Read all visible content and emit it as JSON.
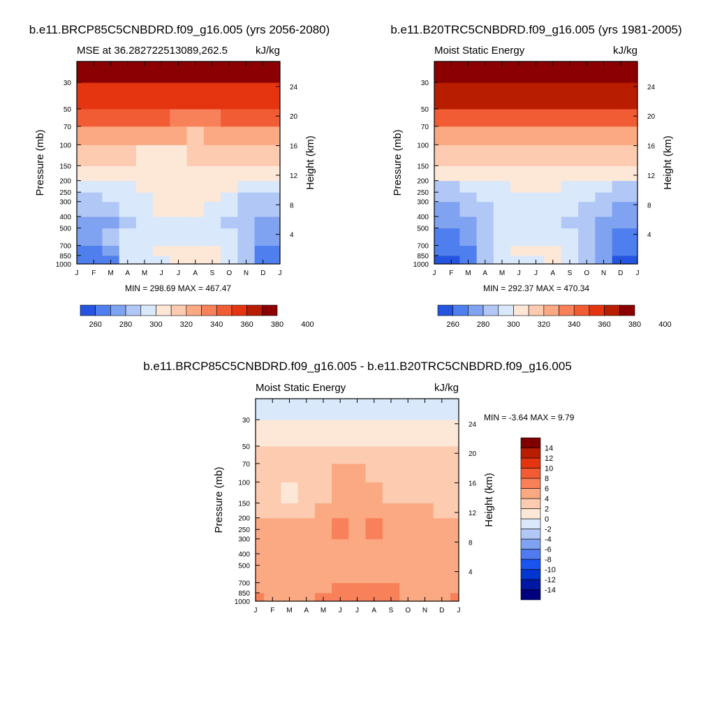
{
  "palettes": {
    "warm_cool": [
      "#00007f",
      "#0017a6",
      "#0035d0",
      "#1a54ef",
      "#4f7bee",
      "#7fa2f1",
      "#b1c7f6",
      "#d9e8fb",
      "#fde7d7",
      "#fccbb0",
      "#fba982",
      "#f8815a",
      "#f25c34",
      "#e43410",
      "#b81d00",
      "#7f0000"
    ],
    "mse_fields": [
      "#2555e0",
      "#4f7fee",
      "#7fa2f1",
      "#b1c7f6",
      "#d9e8fb",
      "#fde7d7",
      "#fccbb0",
      "#fba982",
      "#f8815a",
      "#f25c34",
      "#e43410",
      "#b81d00",
      "#8b0000"
    ]
  },
  "chart_data": [
    {
      "type": "heatmap",
      "name": "future",
      "title": "b.e11.BRCP85C5CNBDRD.f09_g16.005 (yrs 2056-2080)",
      "subtitle_left": "MSE at 36.282722513089,262.5",
      "subtitle_right": "kJ/kg",
      "xlabel": "",
      "ylabel": "Pressure (mb)",
      "ylabel_right": "Height (km)",
      "x_ticks": [
        "J",
        "F",
        "M",
        "A",
        "M",
        "J",
        "J",
        "A",
        "S",
        "O",
        "N",
        "D",
        "J"
      ],
      "y_ticks": [
        30,
        50,
        70,
        100,
        150,
        200,
        250,
        300,
        400,
        500,
        700,
        850,
        1000
      ],
      "ylim": [
        1000,
        20
      ],
      "height_ticks": [
        4,
        8,
        12,
        16,
        20,
        24
      ],
      "stats": "MIN = 298.69 MAX = 467.47",
      "colorbar": {
        "orientation": "horizontal",
        "labels": [
          "260",
          "280",
          "300",
          "320",
          "340",
          "360",
          "380",
          "400"
        ]
      },
      "levels": [
        1000,
        850,
        700,
        500,
        400,
        300,
        250,
        200,
        150,
        100,
        70,
        50,
        30,
        20
      ],
      "classes": [
        [
          1,
          1,
          1,
          4,
          4,
          4,
          5,
          5,
          5,
          4,
          3,
          1,
          1
        ],
        [
          1,
          1,
          2,
          4,
          4,
          5,
          5,
          5,
          5,
          4,
          3,
          1,
          1
        ],
        [
          2,
          2,
          3,
          4,
          4,
          4,
          4,
          4,
          4,
          4,
          3,
          2,
          2
        ],
        [
          2,
          2,
          2,
          3,
          4,
          4,
          4,
          4,
          4,
          3,
          3,
          2,
          2
        ],
        [
          3,
          3,
          3,
          4,
          4,
          5,
          5,
          5,
          4,
          4,
          3,
          3,
          3
        ],
        [
          3,
          3,
          4,
          4,
          4,
          5,
          5,
          5,
          5,
          4,
          3,
          3,
          3
        ],
        [
          4,
          4,
          4,
          4,
          5,
          5,
          5,
          5,
          5,
          5,
          4,
          4,
          4
        ],
        [
          5,
          5,
          5,
          5,
          5,
          5,
          5,
          5,
          5,
          5,
          5,
          5,
          5
        ],
        [
          6,
          6,
          6,
          6,
          5,
          5,
          5,
          6,
          6,
          6,
          6,
          6,
          6
        ],
        [
          7,
          7,
          7,
          7,
          7,
          7,
          7,
          6,
          7,
          7,
          7,
          7,
          7
        ],
        [
          9,
          9,
          9,
          9,
          9,
          9,
          8,
          8,
          8,
          9,
          9,
          9,
          9
        ],
        [
          10,
          10,
          10,
          10,
          10,
          10,
          10,
          10,
          10,
          10,
          10,
          10,
          10
        ],
        [
          12,
          12,
          12,
          12,
          12,
          12,
          12,
          12,
          12,
          12,
          12,
          12,
          12
        ],
        [
          12,
          12,
          12,
          12,
          12,
          12,
          12,
          12,
          12,
          12,
          12,
          12,
          12
        ]
      ]
    },
    {
      "type": "heatmap",
      "name": "historical",
      "title": "b.e11.B20TRC5CNBDRD.f09_g16.005 (yrs 1981-2005)",
      "subtitle_left": "Moist Static Energy",
      "subtitle_right": "kJ/kg",
      "xlabel": "",
      "ylabel": "Pressure (mb)",
      "ylabel_right": "Height (km)",
      "x_ticks": [
        "J",
        "F",
        "M",
        "A",
        "M",
        "J",
        "J",
        "A",
        "S",
        "O",
        "N",
        "D",
        "J"
      ],
      "y_ticks": [
        30,
        50,
        70,
        100,
        150,
        200,
        250,
        300,
        400,
        500,
        700,
        850,
        1000
      ],
      "ylim": [
        1000,
        20
      ],
      "height_ticks": [
        4,
        8,
        12,
        16,
        20,
        24
      ],
      "stats": "MIN = 292.37 MAX = 470.34",
      "colorbar": {
        "orientation": "horizontal",
        "labels": [
          "260",
          "280",
          "300",
          "320",
          "340",
          "360",
          "380",
          "400"
        ]
      },
      "levels": [
        1000,
        850,
        700,
        500,
        400,
        300,
        250,
        200,
        150,
        100,
        70,
        50,
        30,
        20
      ],
      "classes": [
        [
          0,
          0,
          1,
          3,
          4,
          4,
          4,
          5,
          4,
          3,
          2,
          0,
          0
        ],
        [
          1,
          1,
          1,
          3,
          4,
          5,
          5,
          5,
          4,
          3,
          2,
          1,
          1
        ],
        [
          1,
          1,
          2,
          3,
          4,
          4,
          4,
          4,
          4,
          3,
          2,
          1,
          1
        ],
        [
          2,
          2,
          2,
          3,
          4,
          4,
          4,
          4,
          3,
          3,
          2,
          2,
          2
        ],
        [
          2,
          2,
          3,
          3,
          4,
          4,
          4,
          4,
          4,
          3,
          3,
          2,
          2
        ],
        [
          3,
          3,
          3,
          4,
          4,
          4,
          4,
          4,
          4,
          4,
          3,
          3,
          3
        ],
        [
          3,
          3,
          4,
          4,
          4,
          5,
          5,
          5,
          4,
          4,
          4,
          3,
          3
        ],
        [
          5,
          5,
          5,
          5,
          5,
          5,
          5,
          5,
          5,
          5,
          5,
          5,
          5
        ],
        [
          6,
          6,
          6,
          6,
          6,
          6,
          6,
          6,
          6,
          6,
          6,
          6,
          6
        ],
        [
          7,
          7,
          7,
          7,
          7,
          7,
          7,
          7,
          7,
          7,
          7,
          7,
          7
        ],
        [
          9,
          9,
          9,
          9,
          9,
          9,
          9,
          9,
          9,
          9,
          9,
          9,
          9
        ],
        [
          11,
          11,
          11,
          11,
          11,
          11,
          11,
          11,
          11,
          11,
          11,
          11,
          11
        ],
        [
          12,
          12,
          12,
          12,
          12,
          12,
          12,
          12,
          12,
          12,
          12,
          12,
          12
        ],
        [
          12,
          12,
          12,
          12,
          12,
          12,
          12,
          12,
          12,
          12,
          12,
          12,
          12
        ]
      ]
    },
    {
      "type": "heatmap",
      "name": "difference",
      "title": "b.e11.BRCP85C5CNBDRD.f09_g16.005 - b.e11.B20TRC5CNBDRD.f09_g16.005",
      "subtitle_left": "Moist Static Energy",
      "subtitle_right": "kJ/kg",
      "xlabel": "",
      "ylabel": "Pressure (mb)",
      "ylabel_right": "Height (km)",
      "x_ticks": [
        "J",
        "F",
        "M",
        "A",
        "M",
        "J",
        "J",
        "A",
        "S",
        "O",
        "N",
        "D",
        "J"
      ],
      "y_ticks": [
        30,
        50,
        70,
        100,
        150,
        200,
        250,
        300,
        400,
        500,
        700,
        850,
        1000
      ],
      "ylim": [
        1000,
        20
      ],
      "height_ticks": [
        4,
        8,
        12,
        16,
        20,
        24
      ],
      "stats": "MIN =  -3.64 MAX =   9.79",
      "colorbar": {
        "orientation": "vertical",
        "labels": [
          "14",
          "12",
          "10",
          "8",
          "6",
          "4",
          "2",
          "0",
          "-2",
          "-4",
          "-6",
          "-8",
          "-10",
          "-12",
          "-14"
        ]
      },
      "levels": [
        1000,
        850,
        700,
        500,
        400,
        300,
        250,
        200,
        150,
        100,
        70,
        50,
        30,
        20
      ],
      "classes": [
        [
          11,
          10,
          10,
          10,
          11,
          11,
          11,
          11,
          11,
          10,
          10,
          10,
          11
        ],
        [
          10,
          10,
          10,
          10,
          10,
          11,
          11,
          11,
          11,
          10,
          10,
          10,
          10
        ],
        [
          10,
          10,
          10,
          10,
          10,
          10,
          10,
          10,
          10,
          10,
          10,
          10,
          10
        ],
        [
          10,
          10,
          10,
          10,
          10,
          10,
          10,
          10,
          10,
          10,
          10,
          10,
          10
        ],
        [
          10,
          10,
          10,
          10,
          10,
          10,
          10,
          10,
          10,
          10,
          10,
          10,
          10
        ],
        [
          10,
          10,
          10,
          10,
          10,
          11,
          10,
          11,
          10,
          10,
          10,
          10,
          10
        ],
        [
          10,
          10,
          10,
          10,
          10,
          11,
          10,
          11,
          10,
          10,
          10,
          10,
          10
        ],
        [
          9,
          9,
          9,
          9,
          10,
          10,
          10,
          10,
          10,
          10,
          10,
          9,
          9
        ],
        [
          9,
          9,
          8,
          9,
          9,
          10,
          10,
          10,
          9,
          9,
          9,
          9,
          9
        ],
        [
          9,
          9,
          9,
          9,
          9,
          10,
          10,
          9,
          9,
          9,
          9,
          9,
          9
        ],
        [
          9,
          9,
          9,
          9,
          9,
          9,
          9,
          9,
          9,
          9,
          9,
          9,
          9
        ],
        [
          8,
          8,
          8,
          8,
          8,
          8,
          8,
          8,
          8,
          8,
          8,
          8,
          8
        ],
        [
          7,
          7,
          7,
          7,
          7,
          7,
          7,
          7,
          7,
          7,
          7,
          7,
          7
        ],
        [
          7,
          7,
          7,
          7,
          7,
          7,
          7,
          7,
          7,
          7,
          7,
          7,
          7
        ]
      ]
    }
  ]
}
